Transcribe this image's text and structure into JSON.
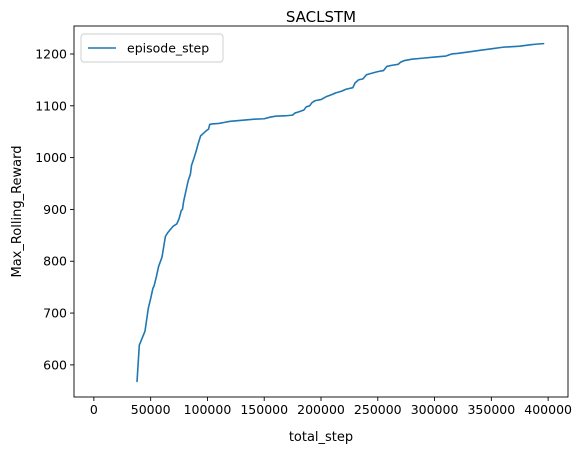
{
  "chart_data": {
    "type": "line",
    "title": "SACLSTM",
    "xlabel": "total_step",
    "ylabel": "Max_Rolling_Reward",
    "xlim": [
      -17500,
      417500
    ],
    "ylim": [
      538,
      1254
    ],
    "x_ticks": [
      0,
      50000,
      100000,
      150000,
      200000,
      250000,
      300000,
      350000,
      400000
    ],
    "x_tick_labels": [
      "0",
      "50000",
      "100000",
      "150000",
      "200000",
      "250000",
      "300000",
      "350000",
      "400000"
    ],
    "y_ticks": [
      600,
      700,
      800,
      900,
      1000,
      1100,
      1200
    ],
    "y_tick_labels": [
      "600",
      "700",
      "800",
      "900",
      "1000",
      "1100",
      "1200"
    ],
    "grid": false,
    "legend_position": "upper-left",
    "series": [
      {
        "name": "episode_step",
        "color": "#1f77b4",
        "x": [
          38000,
          40000,
          45000,
          47000,
          48000,
          50000,
          52000,
          53000,
          55000,
          57000,
          58000,
          60000,
          62000,
          63000,
          65000,
          68000,
          70000,
          73000,
          75000,
          77000,
          78000,
          79000,
          80000,
          82000,
          83000,
          85000,
          86000,
          88000,
          90000,
          92000,
          94000,
          96000,
          99000,
          101000,
          102000,
          104000,
          110000,
          115000,
          120000,
          130000,
          140000,
          150000,
          155000,
          160000,
          170000,
          175000,
          177000,
          180000,
          185000,
          187000,
          190000,
          192000,
          195000,
          200000,
          205000,
          210000,
          213000,
          218000,
          222000,
          228000,
          230000,
          233000,
          237000,
          240000,
          245000,
          250000,
          255000,
          258000,
          262000,
          268000,
          270000,
          273000,
          280000,
          290000,
          300000,
          305000,
          310000,
          315000,
          320000,
          330000,
          340000,
          350000,
          360000,
          375000,
          385000,
          390000,
          396000
        ],
        "y": [
          568,
          638,
          665,
          695,
          710,
          728,
          748,
          752,
          770,
          790,
          796,
          808,
          835,
          848,
          855,
          863,
          868,
          872,
          882,
          898,
          900,
          915,
          925,
          945,
          955,
          968,
          985,
          998,
          1012,
          1028,
          1042,
          1046,
          1052,
          1055,
          1064,
          1065,
          1066,
          1068,
          1070,
          1072,
          1074,
          1075,
          1078,
          1080,
          1081,
          1082,
          1086,
          1088,
          1092,
          1098,
          1100,
          1106,
          1110,
          1112,
          1118,
          1122,
          1125,
          1128,
          1132,
          1135,
          1144,
          1150,
          1152,
          1160,
          1163,
          1166,
          1168,
          1176,
          1178,
          1180,
          1184,
          1187,
          1190,
          1192,
          1194,
          1195,
          1196,
          1200,
          1201,
          1204,
          1207,
          1210,
          1213,
          1215,
          1218,
          1219,
          1220
        ]
      }
    ]
  }
}
